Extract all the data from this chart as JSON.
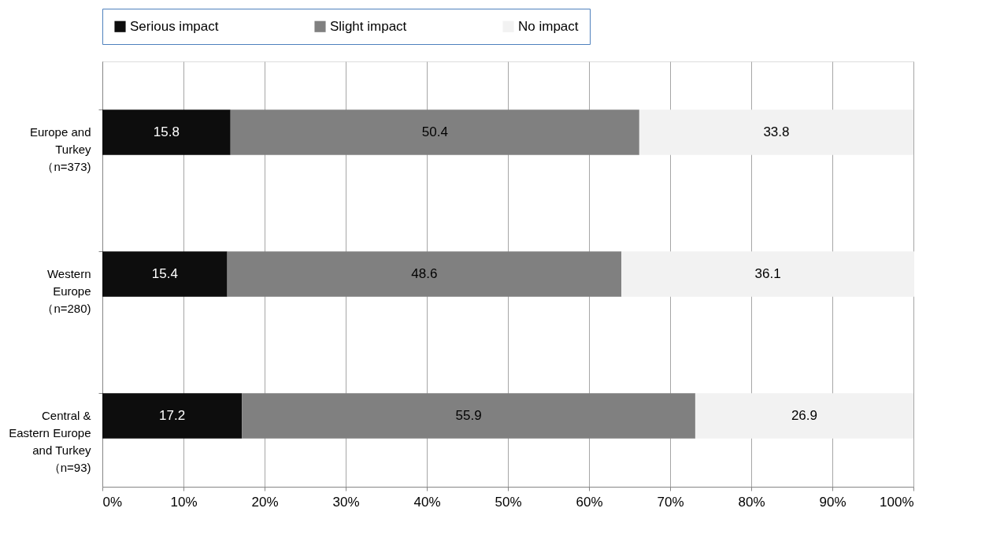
{
  "chart_data": {
    "type": "bar",
    "orientation": "horizontal",
    "stacked": true,
    "categories": [
      "Europe and\nTurkey\n（n=373)",
      "Western\nEurope\n（n=280)",
      "Central &\nEastern Europe\nand Turkey\n（n=93)"
    ],
    "series": [
      {
        "name": "Serious impact",
        "color": "#0d0d0d",
        "values": [
          15.8,
          15.4,
          17.2
        ]
      },
      {
        "name": "Slight impact",
        "color": "#808080",
        "values": [
          50.4,
          48.6,
          55.9
        ]
      },
      {
        "name": "No impact",
        "color": "#f2f2f2",
        "values": [
          33.8,
          36.1,
          26.9
        ]
      }
    ],
    "xlim": [
      0,
      100
    ],
    "xticks": [
      {
        "value": 0,
        "label": "0%"
      },
      {
        "value": 10,
        "label": "10%"
      },
      {
        "value": 20,
        "label": "20%"
      },
      {
        "value": 30,
        "label": "30%"
      },
      {
        "value": 40,
        "label": "40%"
      },
      {
        "value": 50,
        "label": "50%"
      },
      {
        "value": 60,
        "label": "60%"
      },
      {
        "value": 70,
        "label": "70%"
      },
      {
        "value": 80,
        "label": "80%"
      },
      {
        "value": 90,
        "label": "90%"
      },
      {
        "value": 100,
        "label": "100%"
      }
    ],
    "grid": "x",
    "legend": "top",
    "data_labels": true
  }
}
